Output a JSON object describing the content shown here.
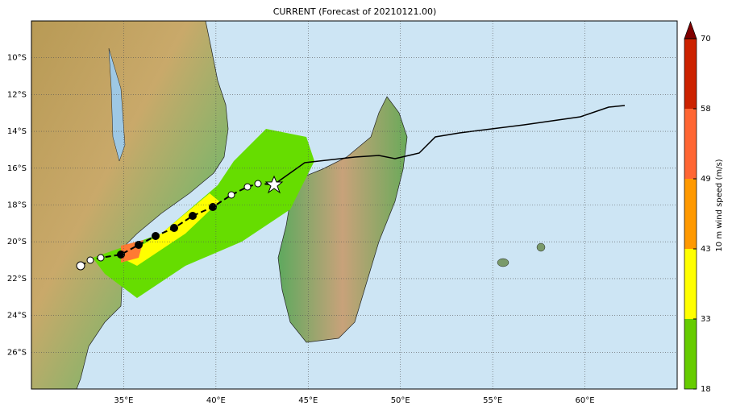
{
  "title": "CURRENT (Forecast of 20210121.00)",
  "map": {
    "xlim": [
      30,
      65
    ],
    "ylim": [
      -28,
      -8
    ],
    "lon_ticks": [
      {
        "value": 35,
        "label": "35°E"
      },
      {
        "value": 40,
        "label": "40°E"
      },
      {
        "value": 45,
        "label": "45°E"
      },
      {
        "value": 50,
        "label": "50°E"
      },
      {
        "value": 55,
        "label": "55°E"
      },
      {
        "value": 60,
        "label": "60°E"
      }
    ],
    "lat_ticks": [
      {
        "value": -10,
        "label": "10°S"
      },
      {
        "value": -12,
        "label": "12°S"
      },
      {
        "value": -14,
        "label": "14°S"
      },
      {
        "value": -16,
        "label": "16°S"
      },
      {
        "value": -18,
        "label": "18°S"
      },
      {
        "value": -20,
        "label": "20°S"
      },
      {
        "value": -22,
        "label": "22°S"
      },
      {
        "value": -24,
        "label": "24°S"
      },
      {
        "value": -26,
        "label": "26°S"
      }
    ]
  },
  "colorbar": {
    "label": "10 m wind speed (m/s)",
    "ticks": [
      18,
      33,
      43,
      49,
      58,
      70
    ],
    "colors": [
      "#66cc00",
      "#ffff00",
      "#ff9900",
      "#ff6633",
      "#cc2200"
    ],
    "extend_color": "#800000"
  }
}
